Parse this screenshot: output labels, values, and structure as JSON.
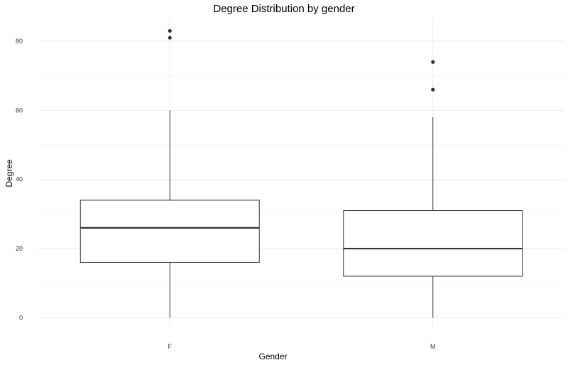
{
  "chart_data": {
    "type": "box",
    "title": "Degree Distribution by gender",
    "xlabel": "Gender",
    "ylabel": "Degree",
    "ylim": [
      -3,
      87
    ],
    "yticks": [
      0,
      20,
      40,
      60,
      80
    ],
    "grid": true,
    "legend": "none",
    "categories": [
      "F",
      "M"
    ],
    "boxes": [
      {
        "category": "F",
        "whisker_low": 0,
        "q1": 16,
        "median": 26,
        "q3": 34,
        "whisker_high": 60,
        "outliers": [
          81,
          83
        ]
      },
      {
        "category": "M",
        "whisker_low": 0,
        "q1": 12,
        "median": 20,
        "q3": 31,
        "whisker_high": 58,
        "outliers": [
          66,
          74
        ]
      }
    ],
    "colors": {
      "box_stroke": "#333333",
      "box_fill": "#ffffff",
      "grid_major": "#ebebeb",
      "grid_minor": "#f5f5f5",
      "outlier": "#333333"
    }
  }
}
